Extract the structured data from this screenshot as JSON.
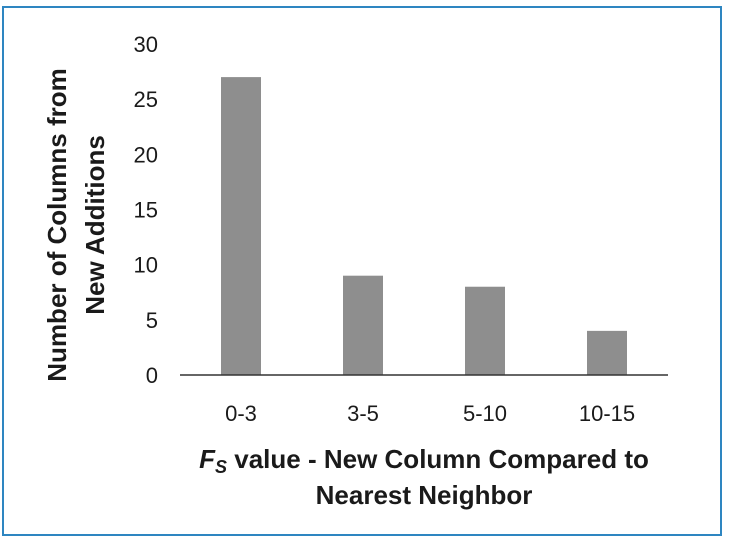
{
  "chart_data": {
    "type": "bar",
    "categories": [
      "0-3",
      "3-5",
      "5-10",
      "10-15"
    ],
    "values": [
      27,
      9,
      8,
      4
    ],
    "ylim": [
      0,
      30
    ],
    "yticks": [
      0,
      5,
      10,
      15,
      20,
      25,
      30
    ],
    "ylabel_line1": "Number of Columns from",
    "ylabel_line2": "New Additions",
    "xlabel_symbol": "F",
    "xlabel_subscript": "S",
    "xlabel_line1_rest": " value - New Column Compared to",
    "xlabel_line2": "Nearest Neighbor",
    "bar_color": "#8e8e8e",
    "frame_color": "#2e86c1",
    "grid": false,
    "legend": "none"
  }
}
